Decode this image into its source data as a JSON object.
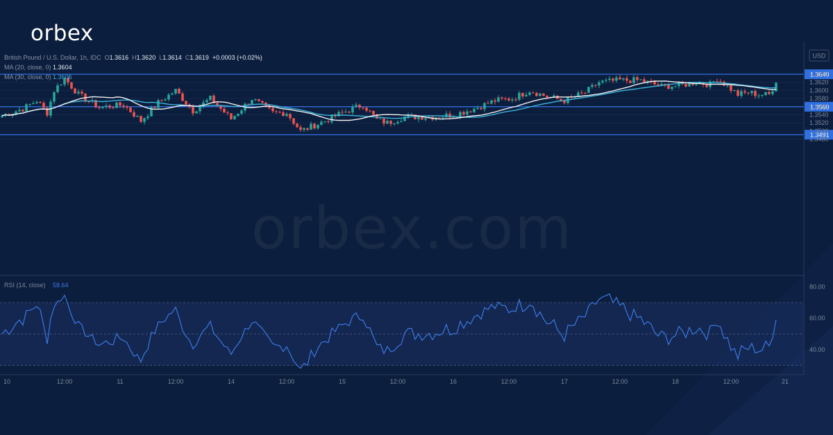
{
  "brand": "orbex",
  "watermark": "orbex.com",
  "header": {
    "symbol": "British Pound / U.S. Dollar, 1h, IDC",
    "o_label": "O",
    "o": "1.3616",
    "h_label": "H",
    "h": "1.3620",
    "l_label": "L",
    "l": "1.3614",
    "c_label": "C",
    "c": "1.3619",
    "change": "+0.0003 (+0.02%)",
    "ma20_label": "MA (20, close, 0)",
    "ma20": "1.3604",
    "ma30_label": "MA (30, close, 0)",
    "ma30": "1.3606"
  },
  "colors": {
    "up": "#26a69a",
    "down": "#ef5350",
    "level": "#2f6fe0",
    "ma20": "#f2f2f2",
    "ma30": "#3bb5d9",
    "rsi": "#3c78e0"
  },
  "chart_data": {
    "type": "candlestick",
    "currency": "USD",
    "ylim": [
      1.3468,
      1.3652
    ],
    "y_ticks": [
      1.364,
      1.362,
      1.36,
      1.358,
      1.356,
      1.354,
      1.352,
      1.35,
      1.348
    ],
    "y_tick_labels": [
      "1.3640",
      "1.3620",
      "1.3600",
      "1.3580",
      "1.3560",
      "1.3540",
      "1.3520",
      "1.3500",
      "1.3480"
    ],
    "x_labels": [
      "10",
      "12:00",
      "11",
      "12:00",
      "14",
      "12:00",
      "15",
      "12:00",
      "16",
      "12:00",
      "17",
      "12:00",
      "18",
      "12:00",
      "21"
    ],
    "levels": [
      {
        "value": 1.364,
        "label": "1.3640"
      },
      {
        "value": 1.356,
        "label": "1.3560"
      },
      {
        "value": 1.3491,
        "label": "1.3491"
      }
    ],
    "anchors": [
      {
        "bar": 0,
        "price": 1.3538
      },
      {
        "bar": 6,
        "price": 1.3555
      },
      {
        "bar": 10,
        "price": 1.3575
      },
      {
        "bar": 13,
        "price": 1.3545
      },
      {
        "bar": 15,
        "price": 1.36
      },
      {
        "bar": 18,
        "price": 1.363
      },
      {
        "bar": 22,
        "price": 1.359
      },
      {
        "bar": 28,
        "price": 1.3558
      },
      {
        "bar": 35,
        "price": 1.3565
      },
      {
        "bar": 40,
        "price": 1.3525
      },
      {
        "bar": 45,
        "price": 1.357
      },
      {
        "bar": 50,
        "price": 1.36
      },
      {
        "bar": 55,
        "price": 1.355
      },
      {
        "bar": 60,
        "price": 1.358
      },
      {
        "bar": 66,
        "price": 1.353
      },
      {
        "bar": 72,
        "price": 1.358
      },
      {
        "bar": 78,
        "price": 1.3545
      },
      {
        "bar": 82,
        "price": 1.3545
      },
      {
        "bar": 86,
        "price": 1.35
      },
      {
        "bar": 93,
        "price": 1.3525
      },
      {
        "bar": 98,
        "price": 1.3545
      },
      {
        "bar": 104,
        "price": 1.3565
      },
      {
        "bar": 108,
        "price": 1.3528
      },
      {
        "bar": 111,
        "price": 1.352
      },
      {
        "bar": 116,
        "price": 1.3535
      },
      {
        "bar": 124,
        "price": 1.3535
      },
      {
        "bar": 130,
        "price": 1.354
      },
      {
        "bar": 136,
        "price": 1.3555
      },
      {
        "bar": 142,
        "price": 1.3575
      },
      {
        "bar": 147,
        "price": 1.358
      },
      {
        "bar": 152,
        "price": 1.36
      },
      {
        "bar": 157,
        "price": 1.3585
      },
      {
        "bar": 162,
        "price": 1.3575
      },
      {
        "bar": 168,
        "price": 1.3595
      },
      {
        "bar": 172,
        "price": 1.362
      },
      {
        "bar": 178,
        "price": 1.3625
      },
      {
        "bar": 184,
        "price": 1.3625
      },
      {
        "bar": 190,
        "price": 1.361
      },
      {
        "bar": 195,
        "price": 1.3612
      },
      {
        "bar": 200,
        "price": 1.362
      },
      {
        "bar": 204,
        "price": 1.3615
      },
      {
        "bar": 206,
        "price": 1.363
      },
      {
        "bar": 209,
        "price": 1.361
      },
      {
        "bar": 212,
        "price": 1.359
      },
      {
        "bar": 215,
        "price": 1.3595
      },
      {
        "bar": 218,
        "price": 1.359
      },
      {
        "bar": 221,
        "price": 1.359
      },
      {
        "bar": 223,
        "price": 1.3619
      }
    ],
    "rsi": {
      "label": "RSI (14, close)",
      "value": 58.64,
      "value_label": "58.64",
      "ylim": [
        24,
        86
      ],
      "bands": [
        70,
        30
      ],
      "ticks": [
        80,
        60,
        40
      ],
      "tick_labels": [
        "80.00",
        "60.00",
        "40.00"
      ]
    }
  }
}
